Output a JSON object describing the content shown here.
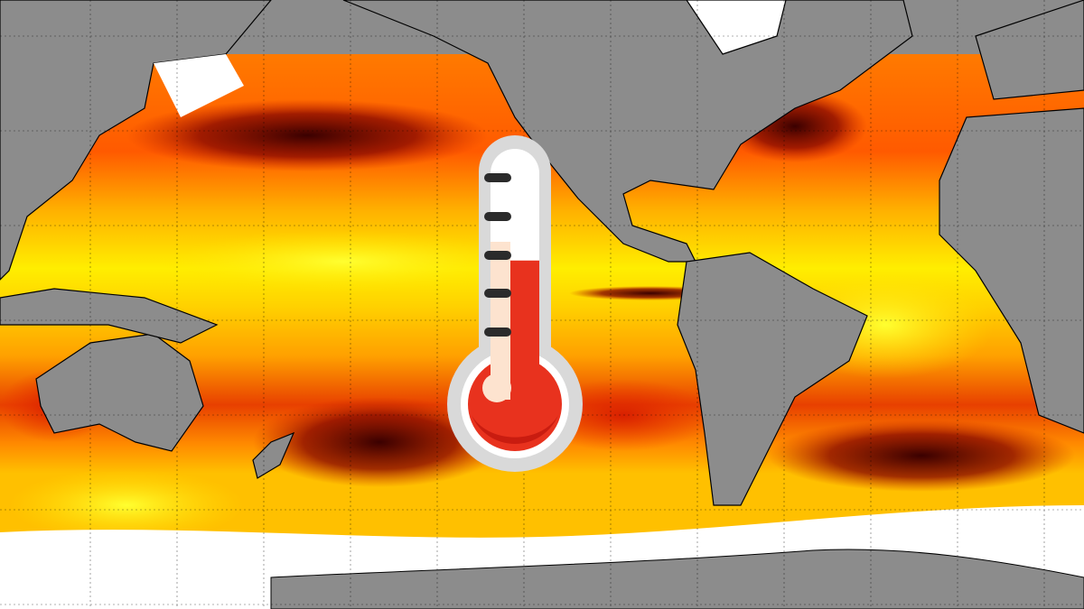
{
  "map": {
    "kind": "sea-surface-temperature",
    "colors": {
      "land": "#8c8c8c",
      "ice": "#ffffff",
      "warmest": "#ffff00",
      "warm": "#ffa500",
      "hot": "#e03000",
      "hottest": "#3a0000",
      "grid": "#000000"
    }
  },
  "overlay": {
    "icon": "thermometer-icon",
    "colors": {
      "frame": "#d9d9d9",
      "fill": "#e8321e",
      "fill_dark": "#c91c10",
      "highlight": "#fde3cf",
      "ticks": "#2b2b2b"
    },
    "level": 0.55
  }
}
